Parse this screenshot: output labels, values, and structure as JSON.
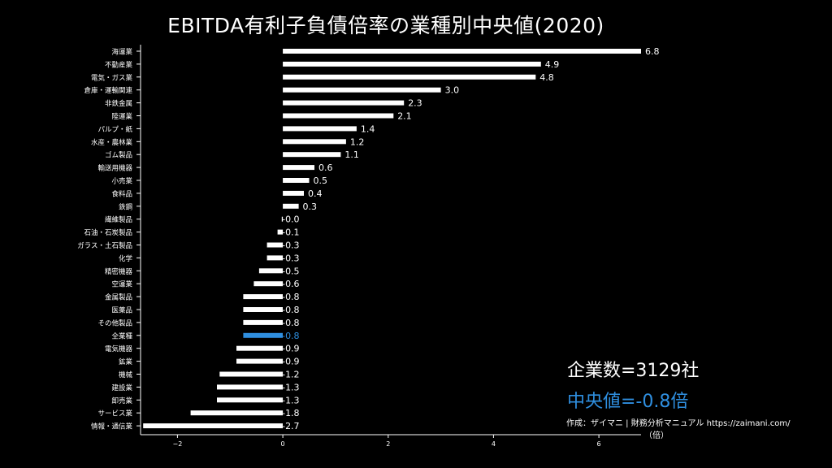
{
  "title": "EBITDA有利子負債倍率の業種別中央値(2020)",
  "stats": {
    "company_count_text": "企業数=3129社",
    "median_text": "中央値=-0.8倍",
    "source_text": "作成：ザイマニ | 財務分析マニュアル https://zaimani.com/"
  },
  "colors": {
    "background": "#000000",
    "bar": "#ffffff",
    "highlight": "#2f8fe0",
    "text": "#ffffff"
  },
  "chart_data": {
    "type": "bar",
    "orientation": "horizontal",
    "title": "EBITDA有利子負債倍率の業種別中央値(2020)",
    "xlabel": "",
    "unit_label": "（倍）",
    "xlim": [
      -2.7,
      6.8
    ],
    "xticks": [
      -2,
      0,
      2,
      4,
      6
    ],
    "xtick_labels": [
      "−2",
      "0",
      "2",
      "4",
      "6"
    ],
    "grid": false,
    "highlight_category": "全業種",
    "categories": [
      "海運業",
      "不動産業",
      "電気・ガス業",
      "倉庫・運輸関連",
      "非鉄金属",
      "陸運業",
      "パルプ・紙",
      "水産・農林業",
      "ゴム製品",
      "輸送用機器",
      "小売業",
      "食料品",
      "鉄鋼",
      "繊維製品",
      "石油・石炭製品",
      "ガラス・土石製品",
      "化学",
      "精密機器",
      "空運業",
      "金属製品",
      "医薬品",
      "その他製品",
      "全業種",
      "電気機器",
      "鉱業",
      "機械",
      "建設業",
      "卸売業",
      "サービス業",
      "情報・通信業"
    ],
    "values": [
      6.8,
      4.9,
      4.8,
      3.0,
      2.3,
      2.1,
      1.4,
      1.2,
      1.1,
      0.6,
      0.5,
      0.4,
      0.3,
      -0.02,
      -0.1,
      -0.3,
      -0.3,
      -0.45,
      -0.55,
      -0.75,
      -0.75,
      -0.75,
      -0.75,
      -0.88,
      -0.88,
      -1.2,
      -1.25,
      -1.25,
      -1.75,
      -2.65
    ],
    "value_labels": [
      "6.8",
      "4.9",
      "4.8",
      "3.0",
      "2.3",
      "2.1",
      "1.4",
      "1.2",
      "1.1",
      "0.6",
      "0.5",
      "0.4",
      "0.3",
      "-0.0",
      "-0.1",
      "-0.3",
      "-0.3",
      "-0.5",
      "-0.6",
      "-0.8",
      "-0.8",
      "-0.8",
      "-0.8",
      "-0.9",
      "-0.9",
      "-1.2",
      "-1.3",
      "-1.3",
      "-1.8",
      "-2.7"
    ]
  }
}
